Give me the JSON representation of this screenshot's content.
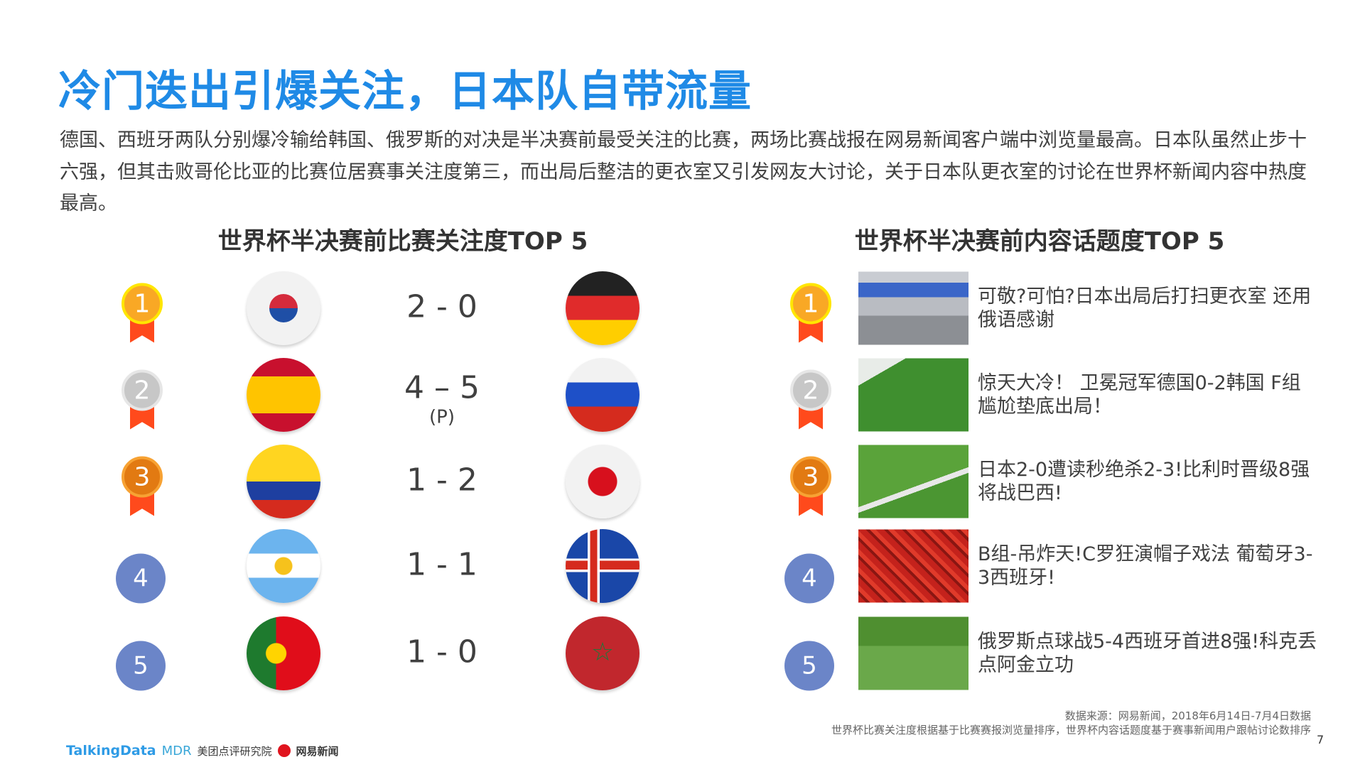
{
  "title": "冷门迭出引爆关注，日本队自带流量",
  "paragraph": "德国、西班牙两队分别爆冷输给韩国、俄罗斯的对决是半决赛前最受关注的比赛，两场比赛战报在网易新闻客户端中浏览量最高。日本队虽然止步十六强，但其击败哥伦比亚的比赛位居赛事关注度第三，而出局后整洁的更衣室又引发网友大讨论，关于日本队更衣室的讨论在世界杯新闻内容中热度最高。",
  "left_section": {
    "title": "世界杯半决赛前比赛关注度TOP 5",
    "rows": [
      {
        "rank": "1",
        "medal": "gold",
        "team1_flag": "south-korea-flag",
        "score": "2 - 0",
        "penalty": "",
        "team2_flag": "germany-flag"
      },
      {
        "rank": "2",
        "medal": "silver",
        "team1_flag": "spain-flag",
        "score": "4 – 5",
        "penalty": "(P)",
        "team2_flag": "russia-flag"
      },
      {
        "rank": "3",
        "medal": "bronze",
        "team1_flag": "colombia-flag",
        "score": "1 - 2",
        "penalty": "",
        "team2_flag": "japan-flag"
      },
      {
        "rank": "4",
        "medal": "plain",
        "team1_flag": "argentina-flag",
        "score": "1 - 1",
        "penalty": "",
        "team2_flag": "iceland-flag"
      },
      {
        "rank": "5",
        "medal": "plain",
        "team1_flag": "portugal-flag",
        "score": "1 - 0",
        "penalty": "",
        "team2_flag": "morocco-flag"
      }
    ]
  },
  "right_section": {
    "title": "世界杯半决赛前内容话题度TOP 5",
    "rows": [
      {
        "rank": "1",
        "medal": "gold",
        "photo": "locker-room-photo",
        "text": "可敬?可怕?日本出局后打扫更衣室 还用俄语感谢"
      },
      {
        "rank": "2",
        "medal": "silver",
        "photo": "goal-scene-photo",
        "text": "惊天大冷！ 卫冕冠军德国0-2韩国 F组尴尬垫底出局！"
      },
      {
        "rank": "3",
        "medal": "bronze",
        "photo": "goalkeeper-photo",
        "text": "日本2-0遭读秒绝杀2-3!比利时晋级8强将战巴西!"
      },
      {
        "rank": "4",
        "medal": "plain",
        "photo": "fans-crowd-photo",
        "text": "B组-吊炸天!C罗狂演帽子戏法 葡萄牙3-3西班牙!"
      },
      {
        "rank": "5",
        "medal": "plain",
        "photo": "celebration-photo",
        "text": "俄罗斯点球战5-4西班牙首进8强!科克丢点阿金立功"
      }
    ]
  },
  "footer": {
    "source": "数据来源：网易新闻，2018年6月14日-7月4日数据",
    "note": "世界杯比赛关注度根据基于比赛赛报浏览量排序，世界杯内容话题度基于赛事新闻用户跟帖讨论数排序",
    "page_number": "7",
    "logos": {
      "talkingdata": "TalkingData",
      "mdr": "MDR",
      "meituan": "美团点评研究院",
      "netease": "网易新闻"
    }
  },
  "colors": {
    "title": "#1f8ae6",
    "gold": "#f9a825",
    "silver": "#c7c7c7",
    "bronze": "#e27a12",
    "plain": "#6b85c8",
    "ribbon": "#ff4a1c"
  }
}
